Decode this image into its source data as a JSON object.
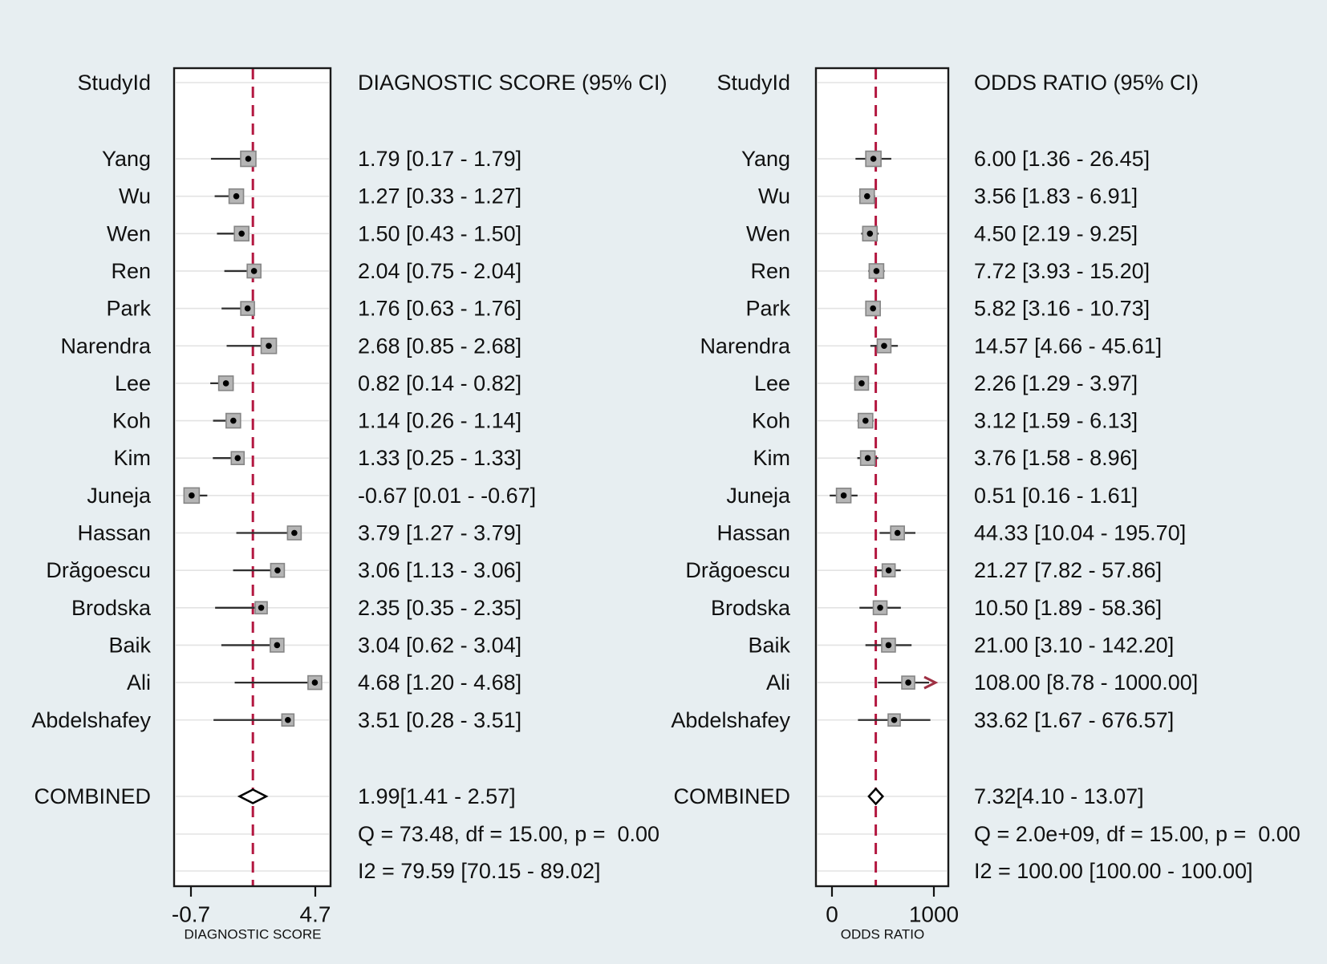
{
  "colors": {
    "background": "#e7eef1",
    "plot_background": "#ffffff",
    "box_border": "#1a1a1a",
    "grid_line": "#e3e3e3",
    "null_line_dash": "#b31740",
    "square_fill": "#b5b5b5",
    "square_stroke": "#858585",
    "point_dot": "#000000",
    "whisker": "#2f2f2f",
    "arrow": "#9e2f42",
    "diamond_stroke": "#000000",
    "text": "#111111"
  },
  "chart_data": [
    {
      "type": "forest",
      "panel": "diagnostic-score",
      "header_study": "StudyId",
      "header_effect": "DIAGNOSTIC SCORE (95% CI)",
      "axis": {
        "label": "DIAGNOSTIC SCORE",
        "ticks": [
          "-0.7",
          "4.7"
        ],
        "scale": "linear",
        "domain": [
          -0.7,
          4.7
        ],
        "grid": true,
        "null_line_at": 1.99
      },
      "studies": [
        {
          "label": "Yang",
          "value": 1.79,
          "lo": 0.17,
          "hi": 1.79,
          "text": "1.79 [0.17 - 1.79]",
          "size": 19
        },
        {
          "label": "Wu",
          "value": 1.27,
          "lo": 0.33,
          "hi": 1.27,
          "text": "1.27 [0.33 - 1.27]",
          "size": 18
        },
        {
          "label": "Wen",
          "value": 1.5,
          "lo": 0.43,
          "hi": 1.5,
          "text": "1.50 [0.43 - 1.50]",
          "size": 18
        },
        {
          "label": "Ren",
          "value": 2.04,
          "lo": 0.75,
          "hi": 2.04,
          "text": "2.04 [0.75 - 2.04]",
          "size": 17
        },
        {
          "label": "Park",
          "value": 1.76,
          "lo": 0.63,
          "hi": 1.76,
          "text": "1.76 [0.63 - 1.76]",
          "size": 17
        },
        {
          "label": "Narendra",
          "value": 2.68,
          "lo": 0.85,
          "hi": 2.68,
          "text": "2.68 [0.85 - 2.68]",
          "size": 19
        },
        {
          "label": "Lee",
          "value": 0.82,
          "lo": 0.14,
          "hi": 0.82,
          "text": "0.82 [0.14 - 0.82]",
          "size": 18
        },
        {
          "label": "Koh",
          "value": 1.14,
          "lo": 0.26,
          "hi": 1.14,
          "text": "1.14 [0.26 - 1.14]",
          "size": 18
        },
        {
          "label": "Kim",
          "value": 1.33,
          "lo": 0.25,
          "hi": 1.33,
          "text": "1.33 [0.25 - 1.33]",
          "size": 16
        },
        {
          "label": "Juneja",
          "value": -0.67,
          "lo": 0.01,
          "hi": -0.67,
          "text": "-0.67 [0.01 - -0.67]",
          "size": 19
        },
        {
          "label": "Hassan",
          "value": 3.79,
          "lo": 1.27,
          "hi": 3.79,
          "text": "3.79 [1.27 - 3.79]",
          "size": 17
        },
        {
          "label": "Drăgoescu",
          "value": 3.06,
          "lo": 1.13,
          "hi": 3.06,
          "text": "3.06 [1.13 - 3.06]",
          "size": 17
        },
        {
          "label": "Brodska",
          "value": 2.35,
          "lo": 0.35,
          "hi": 2.35,
          "text": "2.35 [0.35 - 2.35]",
          "size": 15
        },
        {
          "label": "Baik",
          "value": 3.04,
          "lo": 0.62,
          "hi": 3.04,
          "text": "3.04 [0.62 - 3.04]",
          "size": 17
        },
        {
          "label": "Ali",
          "value": 4.68,
          "lo": 1.2,
          "hi": 4.68,
          "text": "4.68 [1.20 - 4.68]",
          "size": 17
        },
        {
          "label": "Abdelshafey",
          "value": 3.51,
          "lo": 0.28,
          "hi": 3.51,
          "text": "3.51 [0.28 - 3.51]",
          "size": 15
        }
      ],
      "combined": {
        "label": "COMBINED",
        "value": 1.99,
        "lo": 1.41,
        "hi": 2.57,
        "text": "1.99[1.41 - 2.57]"
      },
      "heterogeneity": "Q = 73.48, df = 15.00, p =  0.00",
      "i2": "I2 = 79.59 [70.15 - 89.02]"
    },
    {
      "type": "forest",
      "panel": "odds-ratio",
      "header_study": "StudyId",
      "header_effect": "ODDS RATIO (95% CI)",
      "axis": {
        "label": "ODDS RATIO",
        "ticks": [
          "0",
          "1000"
        ],
        "scale": "log",
        "domain": [
          0,
          1000
        ],
        "grid": true,
        "null_line_at": 7.32
      },
      "studies": [
        {
          "label": "Yang",
          "value": 6.0,
          "lo": 1.36,
          "hi": 26.45,
          "text": "6.00 [1.36 - 26.45]",
          "size": 19
        },
        {
          "label": "Wu",
          "value": 3.56,
          "lo": 1.83,
          "hi": 6.91,
          "text": "3.56 [1.83 - 6.91]",
          "size": 18
        },
        {
          "label": "Wen",
          "value": 4.5,
          "lo": 2.19,
          "hi": 9.25,
          "text": "4.50 [2.19 - 9.25]",
          "size": 18
        },
        {
          "label": "Ren",
          "value": 7.72,
          "lo": 3.93,
          "hi": 15.2,
          "text": "7.72 [3.93 - 15.20]",
          "size": 18
        },
        {
          "label": "Park",
          "value": 5.82,
          "lo": 3.16,
          "hi": 10.73,
          "text": "5.82 [3.16 - 10.73]",
          "size": 18
        },
        {
          "label": "Narendra",
          "value": 14.57,
          "lo": 4.66,
          "hi": 45.61,
          "text": "14.57 [4.66 - 45.61]",
          "size": 17
        },
        {
          "label": "Lee",
          "value": 2.26,
          "lo": 1.29,
          "hi": 3.97,
          "text": "2.26 [1.29 - 3.97]",
          "size": 17
        },
        {
          "label": "Koh",
          "value": 3.12,
          "lo": 1.59,
          "hi": 6.13,
          "text": "3.12 [1.59 - 6.13]",
          "size": 18
        },
        {
          "label": "Kim",
          "value": 3.76,
          "lo": 1.58,
          "hi": 8.96,
          "text": "3.76 [1.58 - 8.96]",
          "size": 18
        },
        {
          "label": "Juneja",
          "value": 0.51,
          "lo": 0.16,
          "hi": 1.61,
          "text": "0.51 [0.16 - 1.61]",
          "size": 18
        },
        {
          "label": "Hassan",
          "value": 44.33,
          "lo": 10.04,
          "hi": 195.7,
          "text": "44.33 [10.04 - 195.70]",
          "size": 17
        },
        {
          "label": "Drăgoescu",
          "value": 21.27,
          "lo": 7.82,
          "hi": 57.86,
          "text": "21.27 [7.82 - 57.86]",
          "size": 16
        },
        {
          "label": "Brodska",
          "value": 10.5,
          "lo": 1.89,
          "hi": 58.36,
          "text": "10.50 [1.89 - 58.36]",
          "size": 17
        },
        {
          "label": "Baik",
          "value": 21.0,
          "lo": 3.1,
          "hi": 142.2,
          "text": "21.00 [3.10 - 142.20]",
          "size": 17
        },
        {
          "label": "Ali",
          "value": 108.0,
          "lo": 8.78,
          "hi": 1000.0,
          "text": "108.00 [8.78 - 1000.00]",
          "size": 16,
          "arrow_high": true
        },
        {
          "label": "Abdelshafey",
          "value": 33.62,
          "lo": 1.67,
          "hi": 676.57,
          "text": "33.62 [1.67 - 676.57]",
          "size": 15
        }
      ],
      "combined": {
        "label": "COMBINED",
        "value": 7.32,
        "lo": 4.1,
        "hi": 13.07,
        "text": "7.32[4.10 - 13.07]"
      },
      "heterogeneity": "Q = 2.0e+09, df = 15.00, p =  0.00",
      "i2": "I2 = 100.00 [100.00 - 100.00]"
    }
  ]
}
